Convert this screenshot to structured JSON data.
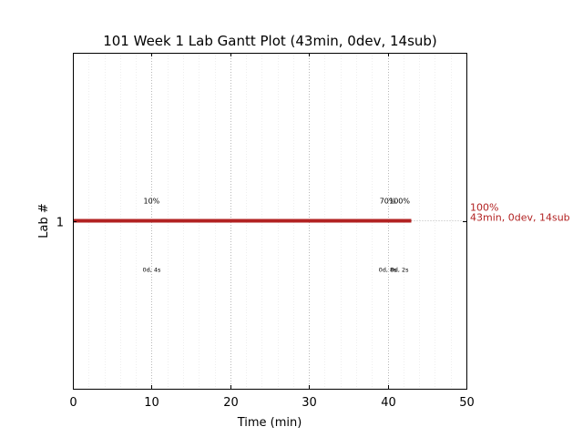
{
  "chart_data": {
    "type": "gantt",
    "title": "101 Week 1 Lab Gantt Plot (43min, 0dev, 14sub)",
    "xlabel": "Time (min)",
    "ylabel": "Lab #",
    "xlim": [
      0,
      50
    ],
    "x_ticks": [
      0,
      10,
      20,
      30,
      40,
      50
    ],
    "x_tick_labels": [
      "0",
      "10",
      "20",
      "30",
      "40",
      "50"
    ],
    "y_ticks": [
      1
    ],
    "y_tick_labels": [
      "1"
    ],
    "grid": true,
    "bars": [
      {
        "lab": 1,
        "start": 0,
        "end": 43,
        "color": "#b22222",
        "end_label_top": "100%",
        "end_label_bottom": "43min, 0dev, 14sub"
      }
    ],
    "milestones_above": [
      {
        "x": 10,
        "label": "10%"
      },
      {
        "x": 40,
        "label": "70%"
      },
      {
        "x": 41.5,
        "label": "100%"
      }
    ],
    "milestones_below": [
      {
        "x": 10,
        "label": "0d, 4s"
      },
      {
        "x": 40,
        "label": "0d, 8s"
      },
      {
        "x": 41.5,
        "label": "0d, 2s"
      }
    ]
  }
}
